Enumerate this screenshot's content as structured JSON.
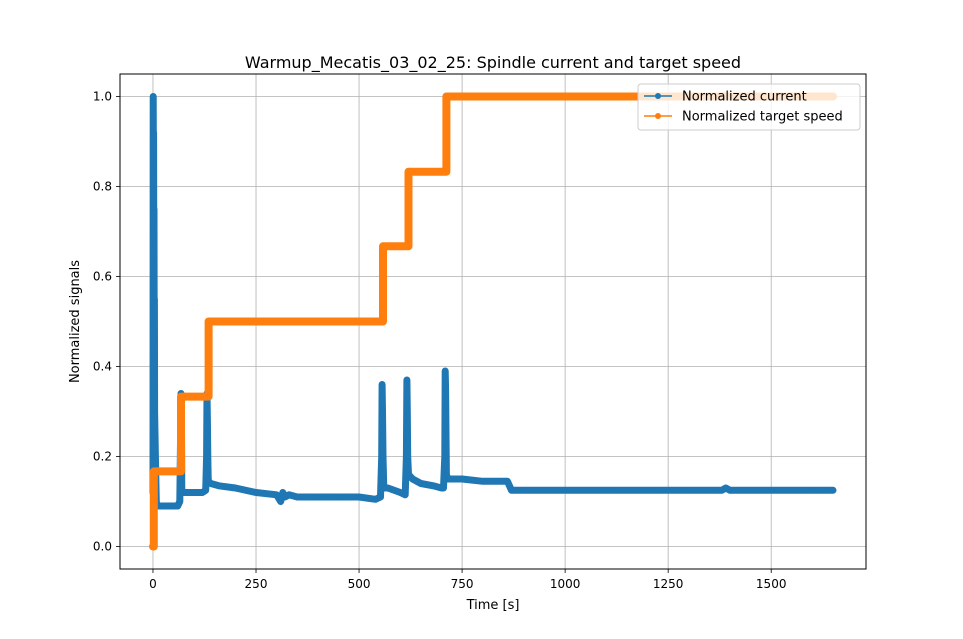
{
  "chart_data": {
    "type": "line",
    "title": "Warmup_Mecatis_03_02_25: Spindle current and target speed",
    "xlabel": "Time [s]",
    "ylabel": "Normalized signals",
    "xlim": [
      -80,
      1730
    ],
    "ylim": [
      -0.05,
      1.05
    ],
    "xticks": [
      0,
      250,
      500,
      750,
      1000,
      1250,
      1500
    ],
    "yticks": [
      0.0,
      0.2,
      0.4,
      0.6,
      0.8,
      1.0
    ],
    "grid": true,
    "legend_position": "upper right",
    "series": [
      {
        "name": "Normalized current",
        "color": "#1f77b4",
        "marker": "o",
        "x": [
          0,
          0.5,
          1,
          1.5,
          2,
          2.5,
          3,
          3.5,
          4,
          5,
          6,
          8,
          10,
          20,
          40,
          60,
          65,
          67,
          68,
          69,
          70,
          72,
          80,
          100,
          120,
          128,
          130,
          131,
          132,
          133,
          134,
          135,
          140,
          160,
          200,
          250,
          300,
          310,
          315,
          320,
          330,
          350,
          400,
          450,
          500,
          540,
          552,
          555,
          556,
          557,
          558,
          560,
          570,
          600,
          612,
          615,
          616,
          617,
          618,
          620,
          630,
          650,
          680,
          700,
          705,
          708,
          709,
          710,
          711,
          712,
          715,
          720,
          750,
          800,
          860,
          870,
          880,
          900,
          1000,
          1100,
          1200,
          1300,
          1380,
          1390,
          1400,
          1500,
          1600,
          1650
        ],
        "y": [
          0.12,
          1.0,
          0.85,
          0.92,
          0.6,
          0.75,
          0.45,
          0.55,
          0.3,
          0.25,
          0.2,
          0.1,
          0.09,
          0.09,
          0.09,
          0.09,
          0.1,
          0.25,
          0.34,
          0.3,
          0.12,
          0.12,
          0.12,
          0.12,
          0.12,
          0.125,
          0.2,
          0.34,
          0.28,
          0.2,
          0.15,
          0.145,
          0.14,
          0.135,
          0.13,
          0.12,
          0.115,
          0.1,
          0.12,
          0.11,
          0.115,
          0.11,
          0.11,
          0.11,
          0.11,
          0.105,
          0.11,
          0.2,
          0.36,
          0.3,
          0.2,
          0.13,
          0.13,
          0.12,
          0.115,
          0.2,
          0.37,
          0.3,
          0.2,
          0.16,
          0.15,
          0.14,
          0.135,
          0.13,
          0.13,
          0.2,
          0.39,
          0.35,
          0.25,
          0.16,
          0.15,
          0.15,
          0.15,
          0.145,
          0.145,
          0.125,
          0.125,
          0.125,
          0.125,
          0.125,
          0.125,
          0.125,
          0.125,
          0.13,
          0.125,
          0.125,
          0.125,
          0.125
        ]
      },
      {
        "name": "Normalized target speed",
        "color": "#ff7f0e",
        "marker": "o",
        "x": [
          0,
          2,
          2,
          68,
          68,
          135,
          135,
          558,
          558,
          620,
          620,
          712,
          712,
          1650
        ],
        "y": [
          0.0,
          0.0,
          0.167,
          0.167,
          0.333,
          0.333,
          0.5,
          0.5,
          0.667,
          0.667,
          0.833,
          0.833,
          1.0,
          1.0
        ]
      }
    ]
  }
}
